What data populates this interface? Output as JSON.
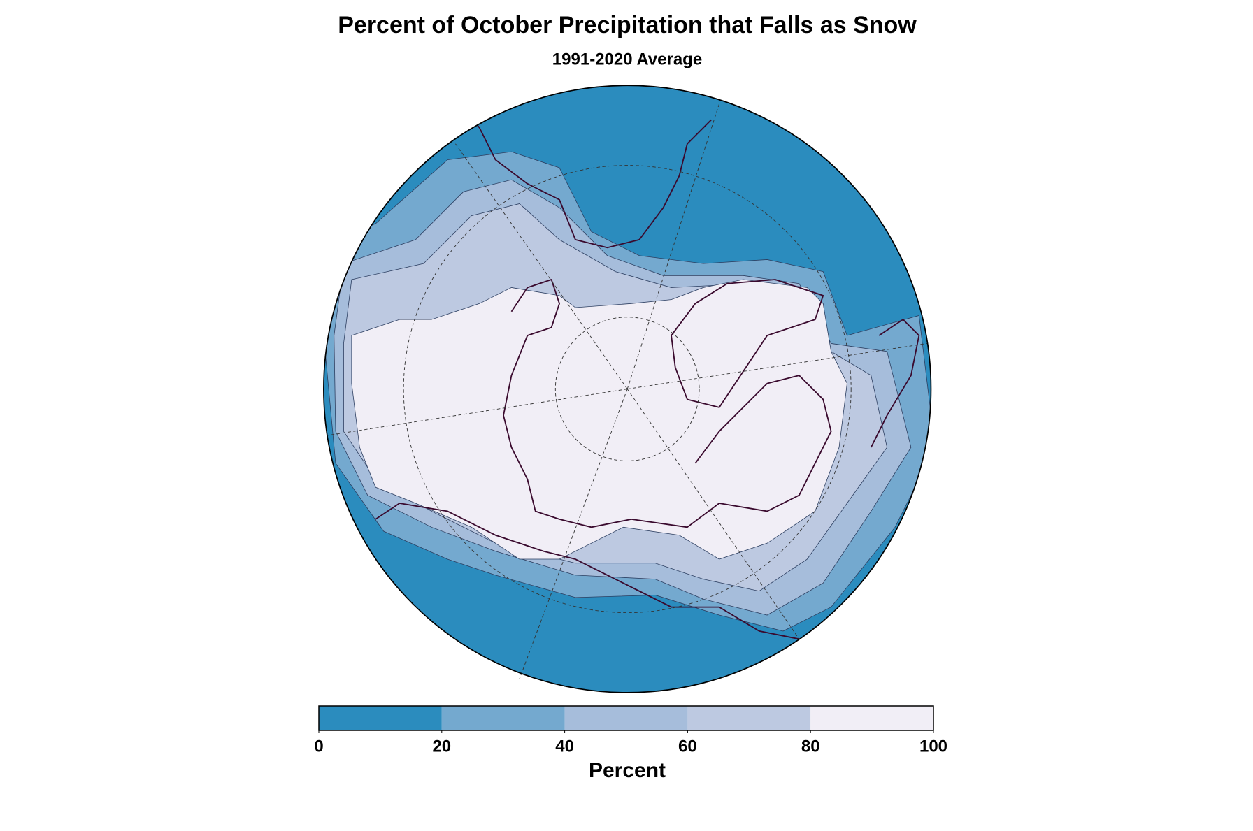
{
  "title": "Percent of October Precipitation that Falls as Snow",
  "subtitle": "1991-2020 Average",
  "colorbar": {
    "ticks": [
      0,
      20,
      40,
      60,
      80,
      100
    ],
    "colors": [
      "#2b8cbe",
      "#74a9cf",
      "#a6bddb",
      "#bdc9e1",
      "#f1eef6"
    ],
    "label": "Percent"
  }
}
